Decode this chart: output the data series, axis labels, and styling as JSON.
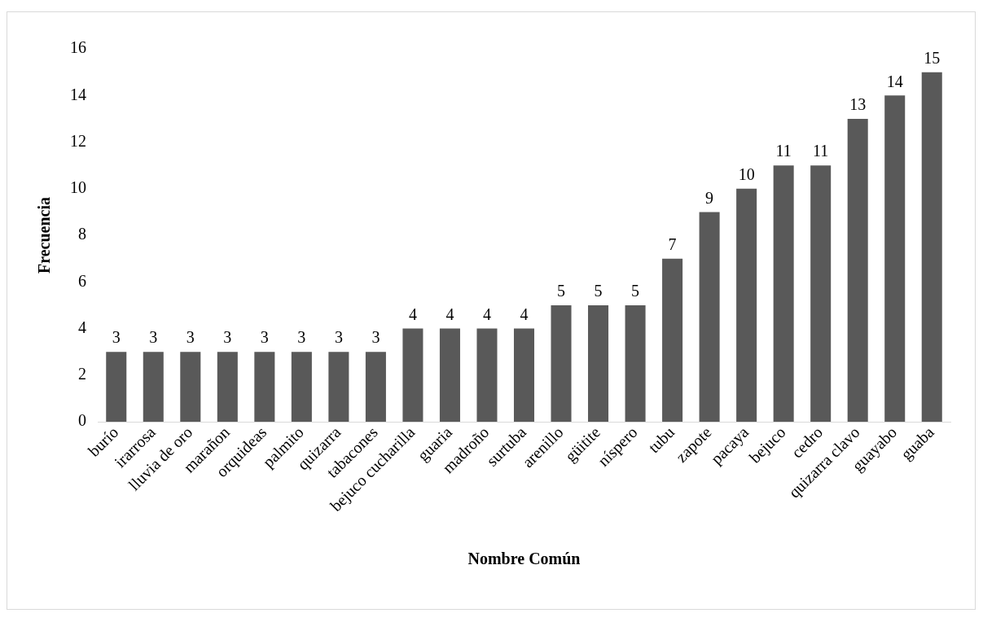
{
  "chart_data": {
    "type": "bar",
    "xlabel": "Nombre Común",
    "ylabel": "Frecuencia",
    "categories": [
      "burío",
      "irarrosa",
      "lluvia de oro",
      "marañon",
      "orquideas",
      "palmito",
      "quizarra",
      "tabacones",
      "bejuco cucharilla",
      "guaria",
      "madroño",
      "surtuba",
      "arenillo",
      "güitite",
      "níspero",
      "tubu",
      "zapote",
      "pacaya",
      "bejuco",
      "cedro",
      "quizarra clavo",
      "guayabo",
      "guaba"
    ],
    "values": [
      3,
      3,
      3,
      3,
      3,
      3,
      3,
      3,
      4,
      4,
      4,
      4,
      5,
      5,
      5,
      7,
      9,
      10,
      11,
      11,
      13,
      14,
      15
    ],
    "color": "#595959",
    "ylim": [
      0,
      16
    ],
    "yticks": [
      0,
      2,
      4,
      6,
      8,
      10,
      12,
      14,
      16
    ],
    "grid": false,
    "legend": false,
    "data_labels": true
  }
}
